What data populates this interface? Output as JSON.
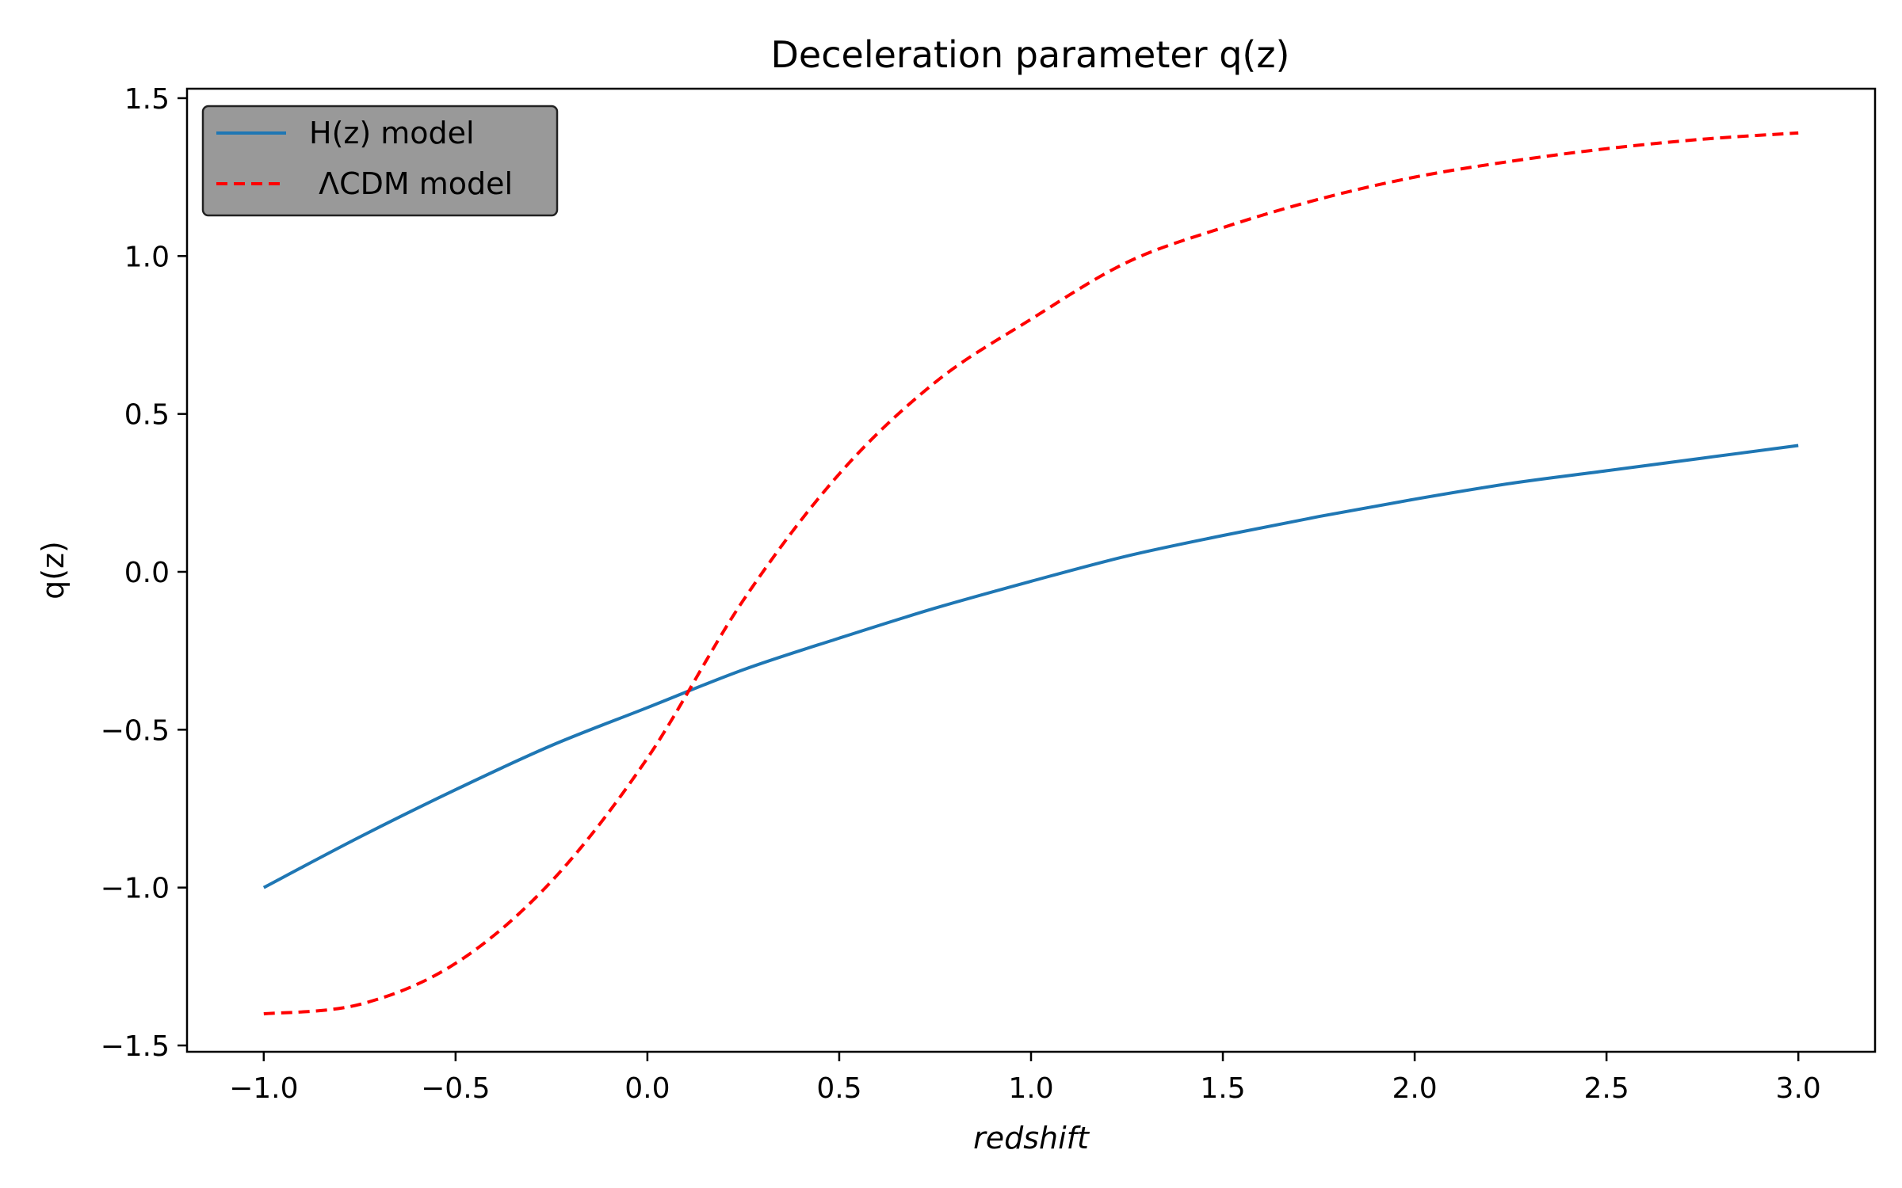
{
  "chart_data": {
    "type": "line",
    "title": "Deceleration parameter q(z)",
    "xlabel": "redshift",
    "ylabel": "q(z)",
    "xlim": [
      -1.2,
      3.2
    ],
    "ylim": [
      -1.52,
      1.53
    ],
    "x_ticks": [
      -1.0,
      -0.5,
      0.0,
      0.5,
      1.0,
      1.5,
      2.0,
      2.5,
      3.0
    ],
    "y_ticks": [
      -1.5,
      -1.0,
      -0.5,
      0.0,
      0.5,
      1.0,
      1.5
    ],
    "x_tick_labels": [
      "−1.0",
      "−0.5",
      "0.0",
      "0.5",
      "1.0",
      "1.5",
      "2.0",
      "2.5",
      "3.0"
    ],
    "y_tick_labels": [
      "−1.5",
      "−1.0",
      "−0.5",
      "0.0",
      "0.5",
      "1.0",
      "1.5"
    ],
    "grid": false,
    "legend": {
      "placement": "upper-left",
      "background": "#999999",
      "entries": [
        "H(z) model",
        " ΛCDM model"
      ]
    },
    "x": [
      -1.0,
      -0.75,
      -0.5,
      -0.25,
      0.0,
      0.25,
      0.5,
      0.75,
      1.0,
      1.25,
      1.5,
      1.75,
      2.0,
      2.25,
      2.5,
      2.75,
      3.0
    ],
    "series": [
      {
        "name": "H(z) model",
        "color": "#1f77b4",
        "style": "solid",
        "values": [
          -1.0,
          -0.84,
          -0.69,
          -0.55,
          -0.43,
          -0.31,
          -0.21,
          -0.115,
          -0.03,
          0.05,
          0.115,
          0.175,
          0.23,
          0.28,
          0.32,
          0.36,
          0.4
        ]
      },
      {
        "name": " ΛCDM model",
        "color": "#ff0000",
        "style": "dashed",
        "values": [
          -1.4,
          -1.37,
          -1.24,
          -0.98,
          -0.59,
          -0.09,
          0.31,
          0.6,
          0.8,
          0.98,
          1.09,
          1.18,
          1.25,
          1.3,
          1.34,
          1.37,
          1.39
        ]
      }
    ]
  }
}
